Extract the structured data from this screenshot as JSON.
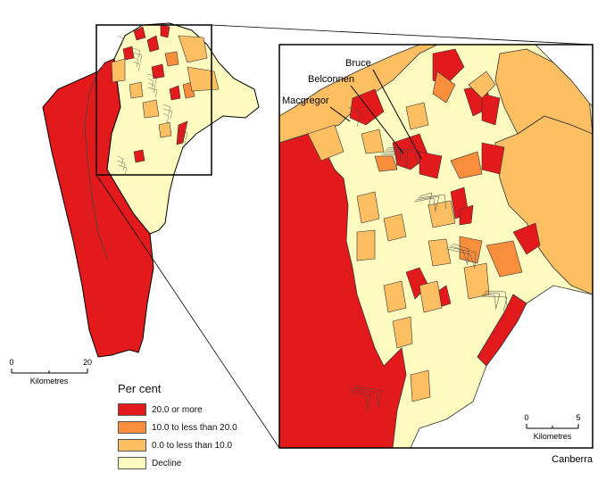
{
  "colors": {
    "high": "#e31a1c",
    "mid": "#f98e3c",
    "low": "#fdbf62",
    "decline": "#fefbc0",
    "outline": "#000000",
    "inner_border": "#444444"
  },
  "legend": {
    "title": "Per cent",
    "items": [
      {
        "label": "20.0 or more",
        "color": "#e31a1c"
      },
      {
        "label": "10.0 to less than 20.0",
        "color": "#f98e3c"
      },
      {
        "label": "0.0 to less than 10.0",
        "color": "#fdbf62"
      },
      {
        "label": "Decline",
        "color": "#fefbc0"
      }
    ]
  },
  "overview_scale": {
    "start": "0",
    "end": "20",
    "unit": "Kilometres"
  },
  "inset_scale": {
    "start": "0",
    "end": "5",
    "unit": "Kilometres"
  },
  "inset_caption": "Canberra",
  "place_labels": {
    "bruce": "Bruce",
    "belconnen": "Belconnen",
    "macgregor": "Macgregor"
  }
}
